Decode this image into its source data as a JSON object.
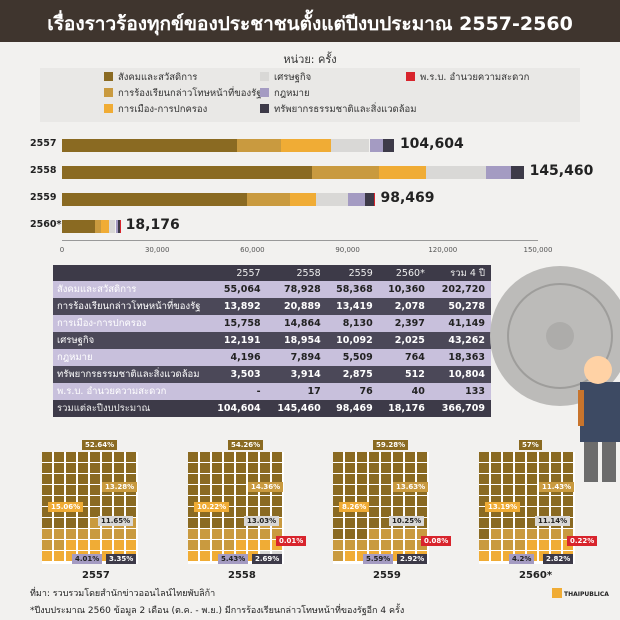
{
  "header": {
    "title": "เรื่องราวร้องทุกข์ของประชาชนตั้งแต่ปีงบประมาณ 2557-2560"
  },
  "unit": "หน่วย: ครั้ง",
  "colors": {
    "c1": "#8a6a22",
    "c2": "#c99a3f",
    "c3": "#f0ac35",
    "c4": "#d9d8d6",
    "c5": "#a49bc2",
    "c6": "#3d3a48",
    "c7": "#d8242c"
  },
  "legend": [
    {
      "label": "สังคมและสวัสดิการ",
      "color": "#8a6a22"
    },
    {
      "label": "การร้องเรียนกล่าวโทษหน้าที่ของรัฐ",
      "color": "#c99a3f"
    },
    {
      "label": "การเมือง-การปกครอง",
      "color": "#f0ac35"
    },
    {
      "label": "เศรษฐกิจ",
      "color": "#d9d8d6"
    },
    {
      "label": "กฎหมาย",
      "color": "#a49bc2"
    },
    {
      "label": "ทรัพยากรธรรมชาติและสิ่งแวดล้อม",
      "color": "#3d3a48"
    },
    {
      "label": "พ.ร.บ. อำนวยความสะดวก",
      "color": "#d8242c"
    }
  ],
  "chart_data": [
    {
      "type": "bar",
      "orientation": "horizontal",
      "stacked": true,
      "categories": [
        "2557",
        "2558",
        "2559",
        "2560*"
      ],
      "series": [
        {
          "name": "สังคมและสวัสดิการ",
          "values": [
            55064,
            78928,
            58368,
            10360
          ]
        },
        {
          "name": "การร้องเรียนกล่าวโทษหน้าที่ของรัฐ",
          "values": [
            13892,
            20889,
            13419,
            2078
          ]
        },
        {
          "name": "การเมือง-การปกครอง",
          "values": [
            15758,
            14864,
            8130,
            2397
          ]
        },
        {
          "name": "เศรษฐกิจ",
          "values": [
            12191,
            18954,
            10092,
            2025
          ]
        },
        {
          "name": "กฎหมาย",
          "values": [
            4196,
            7894,
            5509,
            764
          ]
        },
        {
          "name": "ทรัพยากรธรรมชาติและสิ่งแวดล้อม",
          "values": [
            3503,
            3914,
            2875,
            512
          ]
        },
        {
          "name": "พ.ร.บ. อำนวยความสะดวก",
          "values": [
            0,
            17,
            76,
            40
          ]
        }
      ],
      "totals": [
        "104,604",
        "145,460",
        "98,469",
        "18,176"
      ],
      "xlim": [
        0,
        150000
      ],
      "xticks": [
        "0",
        "30,000",
        "60,000",
        "90,000",
        "120,000",
        "150,000"
      ]
    },
    {
      "type": "table",
      "columns": [
        "2557",
        "2558",
        "2559",
        "2560*",
        "รวม 4 ปี"
      ],
      "rows": [
        {
          "label": "สังคมและสวัสดิการ",
          "values": [
            "55,064",
            "78,928",
            "58,368",
            "10,360",
            "202,720"
          ]
        },
        {
          "label": "การร้องเรียนกล่าวโทษหน้าที่ของรัฐ",
          "values": [
            "13,892",
            "20,889",
            "13,419",
            "2,078",
            "50,278"
          ]
        },
        {
          "label": "การเมือง-การปกครอง",
          "values": [
            "15,758",
            "14,864",
            "8,130",
            "2,397",
            "41,149"
          ]
        },
        {
          "label": "เศรษฐกิจ",
          "values": [
            "12,191",
            "18,954",
            "10,092",
            "2,025",
            "43,262"
          ]
        },
        {
          "label": "กฎหมาย",
          "values": [
            "4,196",
            "7,894",
            "5,509",
            "764",
            "18,363"
          ]
        },
        {
          "label": "ทรัพยากรธรรมชาติและสิ่งแวดล้อม",
          "values": [
            "3,503",
            "3,914",
            "2,875",
            "512",
            "10,804"
          ]
        },
        {
          "label": "พ.ร.บ. อำนวยความสะดวก",
          "values": [
            "-",
            "17",
            "76",
            "40",
            "133"
          ]
        }
      ],
      "total": {
        "label": "รวมแต่ละปีงบประมาณ",
        "values": [
          "104,604",
          "145,460",
          "98,469",
          "18,176",
          "366,709"
        ]
      }
    },
    {
      "type": "heatmap",
      "description": "waffle",
      "panels": [
        {
          "year": "2557",
          "cells": [
            52,
            14,
            15,
            12,
            4,
            3,
            0
          ],
          "labels": [
            "52.64%",
            "13.28%",
            "15.06%",
            "11.65%",
            "4.01%",
            "3.35%",
            ""
          ]
        },
        {
          "year": "2558",
          "cells": [
            54,
            14,
            10,
            13,
            5,
            3,
            1
          ],
          "labels": [
            "54.26%",
            "14.36%",
            "10.22%",
            "13.03%",
            "5.43%",
            "2.69%",
            "0.01%"
          ]
        },
        {
          "year": "2559",
          "cells": [
            59,
            14,
            8,
            10,
            6,
            3,
            1
          ],
          "labels": [
            "59.28%",
            "13.63%",
            "8.26%",
            "10.25%",
            "5.59%",
            "2.92%",
            "0.08%"
          ]
        },
        {
          "year": "2560*",
          "cells": [
            57,
            11,
            13,
            11,
            4,
            3,
            1
          ],
          "labels": [
            "57%",
            "11.43%",
            "13.19%",
            "11.14%",
            "4.2%",
            "2.82%",
            "0.22%"
          ]
        }
      ]
    }
  ],
  "footnotes": [
    "ที่มา: รวบรวมโดยสำนักข่าวออนไลน์ไทยพับลิก้า",
    "*ปีงบประมาณ 2560 ข้อมูล 2 เดือน (ต.ค. - พ.ย.) มีการร้องเรียนกล่าวโทษหน้าที่ของรัฐอีก 4 ครั้ง"
  ],
  "logo": "THAIPUBLICA"
}
